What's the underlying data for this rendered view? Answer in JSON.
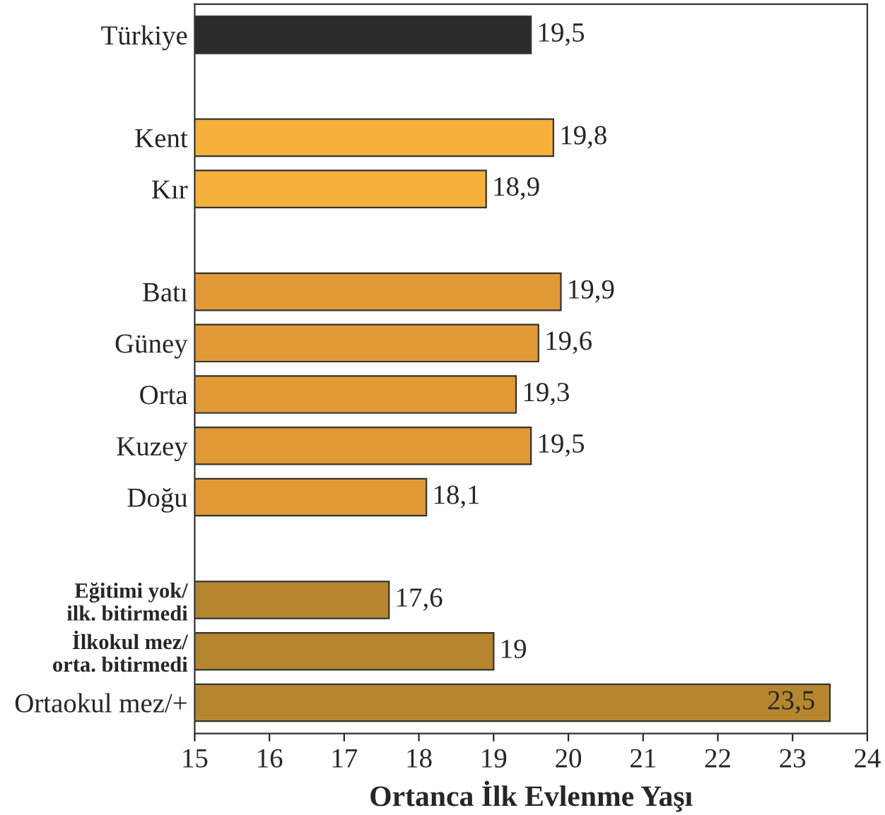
{
  "chart_data": {
    "type": "bar",
    "orientation": "horizontal",
    "xlabel": "Ortanca İlk Evlenme Yaşı",
    "categories": [
      "Türkiye",
      null,
      "Kent",
      "Kır",
      null,
      "Batı",
      "Güney",
      "Orta",
      "Kuzey",
      "Doğu",
      null,
      "Eğitimi yok/\nilk. bitirmedi",
      "İlkokul mez/\norta. bitirmedi",
      "Ortaokul mez/+"
    ],
    "values": [
      19.5,
      null,
      19.8,
      18.9,
      null,
      19.9,
      19.6,
      19.3,
      19.5,
      18.1,
      null,
      17.6,
      19,
      23.5
    ],
    "value_labels": [
      "19,5",
      null,
      "19,8",
      "18,9",
      null,
      "19,9",
      "19,6",
      "19,3",
      "19,5",
      "18,1",
      null,
      "17,6",
      "19",
      "23,5"
    ],
    "colors": [
      "#2b2b2b",
      null,
      "#f6b13c",
      "#f6b13c",
      null,
      "#e29a36",
      "#e29a36",
      "#e29a36",
      "#e29a36",
      "#e29a36",
      null,
      "#b6862f",
      "#b6862f",
      "#b6862f"
    ],
    "xlim": [
      15,
      24
    ],
    "xticks": [
      15,
      16,
      17,
      18,
      19,
      20,
      21,
      22,
      23,
      24
    ],
    "grid": false
  }
}
